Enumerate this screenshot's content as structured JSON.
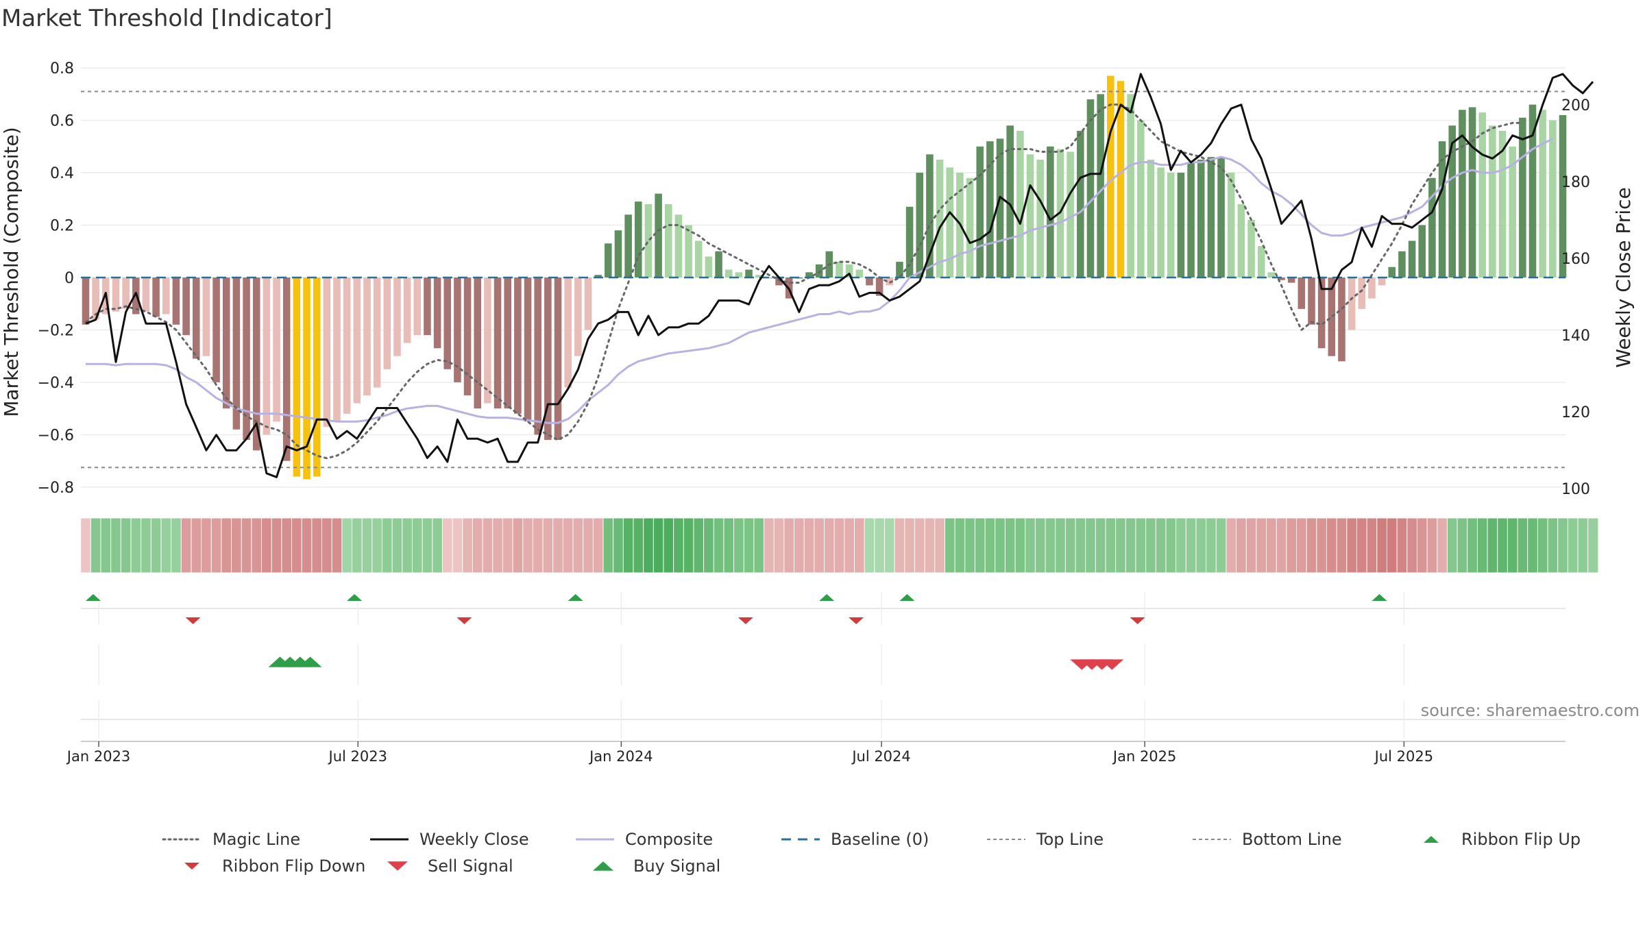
{
  "chart_data": {
    "type": "bar",
    "title": "Market Threshold [Indicator]",
    "ylabel_left": "Market Threshold (Composite)",
    "ylabel_right": "Weekly Close Price",
    "ylim_left": [
      -0.85,
      0.85
    ],
    "ylim_right": [
      97,
      213
    ],
    "yticks_left": [
      0.8,
      0.6,
      0.4,
      0.2,
      0,
      -0.2,
      -0.4,
      -0.6,
      -0.8
    ],
    "yticks_left_labels": [
      "0.8",
      "0.6",
      "0.4",
      "0.2",
      "0",
      "−0.2",
      "−0.4",
      "−0.6",
      "−0.8"
    ],
    "yticks_right": [
      200,
      180,
      160,
      140,
      120,
      100
    ],
    "xticks": [
      {
        "label": "Jan 2023",
        "week": 1.3
      },
      {
        "label": "Jul 2023",
        "week": 27.1
      },
      {
        "label": "Jan 2024",
        "week": 53.3
      },
      {
        "label": "Jul 2024",
        "week": 79.2
      },
      {
        "label": "Jan 2025",
        "week": 105.4
      },
      {
        "label": "Jul 2025",
        "week": 131.2
      }
    ],
    "top_line": 0.71,
    "bottom_line": -0.725,
    "source": "source: sharemaestro.com",
    "series_meta": {
      "composite_color": "#b8b2e2",
      "magic_color": "#666666",
      "close_color": "#111111",
      "baseline_color": "#2a6f97",
      "extreme_color": "#f7c10f"
    },
    "histogram": [
      -0.18,
      -0.16,
      -0.14,
      -0.13,
      -0.12,
      -0.14,
      -0.13,
      -0.15,
      -0.14,
      -0.18,
      -0.22,
      -0.31,
      -0.3,
      -0.4,
      -0.5,
      -0.58,
      -0.62,
      -0.66,
      -0.6,
      -0.55,
      -0.7,
      -0.76,
      -0.77,
      -0.76,
      -0.57,
      -0.55,
      -0.52,
      -0.48,
      -0.45,
      -0.42,
      -0.35,
      -0.3,
      -0.25,
      -0.22,
      -0.22,
      -0.27,
      -0.35,
      -0.4,
      -0.45,
      -0.5,
      -0.48,
      -0.5,
      -0.5,
      -0.52,
      -0.55,
      -0.6,
      -0.62,
      -0.62,
      -0.42,
      -0.3,
      -0.2,
      0.01,
      0.13,
      0.18,
      0.24,
      0.29,
      0.28,
      0.32,
      0.28,
      0.24,
      0.2,
      0.14,
      0.08,
      0.1,
      0.03,
      0.02,
      0.03,
      0.01,
      0.0,
      -0.03,
      -0.08,
      0.0,
      0.02,
      0.05,
      0.1,
      0.06,
      0.05,
      0.03,
      -0.03,
      -0.07,
      -0.03,
      0.06,
      0.27,
      0.4,
      0.47,
      0.45,
      0.42,
      0.4,
      0.38,
      0.5,
      0.52,
      0.53,
      0.58,
      0.56,
      0.47,
      0.45,
      0.5,
      0.49,
      0.48,
      0.56,
      0.68,
      0.7,
      0.77,
      0.75,
      0.7,
      0.6,
      0.45,
      0.42,
      0.4,
      0.4,
      0.44,
      0.45,
      0.46,
      0.46,
      0.4,
      0.28,
      0.22,
      0.12,
      0.02,
      -0.01,
      -0.02,
      -0.12,
      -0.18,
      -0.27,
      -0.3,
      -0.32,
      -0.2,
      -0.12,
      -0.08,
      -0.03,
      0.04,
      0.1,
      0.14,
      0.2,
      0.38,
      0.52,
      0.58,
      0.64,
      0.65,
      0.63,
      0.58,
      0.56,
      0.5,
      0.61,
      0.66,
      0.64,
      0.6,
      0.62
    ],
    "composite": [
      -0.33,
      -0.33,
      -0.33,
      -0.335,
      -0.33,
      -0.33,
      -0.33,
      -0.33,
      -0.335,
      -0.35,
      -0.38,
      -0.4,
      -0.43,
      -0.46,
      -0.48,
      -0.5,
      -0.51,
      -0.52,
      -0.52,
      -0.52,
      -0.525,
      -0.53,
      -0.535,
      -0.54,
      -0.545,
      -0.55,
      -0.55,
      -0.55,
      -0.545,
      -0.535,
      -0.525,
      -0.51,
      -0.5,
      -0.495,
      -0.49,
      -0.49,
      -0.5,
      -0.51,
      -0.52,
      -0.53,
      -0.535,
      -0.535,
      -0.535,
      -0.54,
      -0.545,
      -0.55,
      -0.555,
      -0.555,
      -0.54,
      -0.51,
      -0.47,
      -0.44,
      -0.41,
      -0.37,
      -0.34,
      -0.32,
      -0.31,
      -0.3,
      -0.29,
      -0.285,
      -0.28,
      -0.275,
      -0.27,
      -0.26,
      -0.25,
      -0.23,
      -0.21,
      -0.2,
      -0.19,
      -0.18,
      -0.17,
      -0.16,
      -0.15,
      -0.14,
      -0.14,
      -0.13,
      -0.14,
      -0.13,
      -0.13,
      -0.12,
      -0.09,
      -0.05,
      0.0,
      0.02,
      0.04,
      0.06,
      0.07,
      0.09,
      0.1,
      0.12,
      0.13,
      0.14,
      0.15,
      0.16,
      0.18,
      0.19,
      0.2,
      0.21,
      0.23,
      0.25,
      0.29,
      0.33,
      0.37,
      0.4,
      0.43,
      0.44,
      0.44,
      0.43,
      0.43,
      0.43,
      0.44,
      0.44,
      0.45,
      0.46,
      0.45,
      0.43,
      0.4,
      0.36,
      0.33,
      0.31,
      0.28,
      0.24,
      0.2,
      0.17,
      0.16,
      0.16,
      0.17,
      0.19,
      0.2,
      0.21,
      0.22,
      0.23,
      0.25,
      0.27,
      0.31,
      0.35,
      0.38,
      0.4,
      0.41,
      0.4,
      0.4,
      0.41,
      0.43,
      0.46,
      0.49,
      0.51,
      0.53
    ],
    "magic": [
      -0.17,
      -0.14,
      -0.12,
      -0.12,
      -0.11,
      -0.12,
      -0.13,
      -0.15,
      -0.17,
      -0.2,
      -0.25,
      -0.3,
      -0.35,
      -0.41,
      -0.46,
      -0.5,
      -0.53,
      -0.55,
      -0.57,
      -0.58,
      -0.6,
      -0.64,
      -0.66,
      -0.68,
      -0.69,
      -0.68,
      -0.66,
      -0.63,
      -0.59,
      -0.55,
      -0.5,
      -0.45,
      -0.4,
      -0.36,
      -0.33,
      -0.315,
      -0.32,
      -0.34,
      -0.37,
      -0.4,
      -0.43,
      -0.46,
      -0.49,
      -0.52,
      -0.55,
      -0.58,
      -0.6,
      -0.62,
      -0.6,
      -0.55,
      -0.48,
      -0.38,
      -0.25,
      -0.12,
      -0.02,
      0.08,
      0.14,
      0.18,
      0.2,
      0.2,
      0.18,
      0.16,
      0.13,
      0.11,
      0.09,
      0.07,
      0.05,
      0.03,
      0.01,
      -0.01,
      -0.02,
      -0.02,
      0.0,
      0.02,
      0.05,
      0.06,
      0.06,
      0.05,
      0.03,
      0.0,
      -0.02,
      0.0,
      0.05,
      0.12,
      0.2,
      0.26,
      0.3,
      0.33,
      0.36,
      0.39,
      0.43,
      0.47,
      0.49,
      0.49,
      0.49,
      0.48,
      0.48,
      0.48,
      0.5,
      0.55,
      0.6,
      0.64,
      0.66,
      0.66,
      0.64,
      0.6,
      0.56,
      0.52,
      0.5,
      0.48,
      0.47,
      0.46,
      0.44,
      0.42,
      0.37,
      0.3,
      0.22,
      0.14,
      0.05,
      -0.03,
      -0.12,
      -0.2,
      -0.17,
      -0.18,
      -0.15,
      -0.12,
      -0.08,
      -0.05,
      0.01,
      0.07,
      0.13,
      0.2,
      0.28,
      0.34,
      0.4,
      0.45,
      0.48,
      0.5,
      0.52,
      0.55,
      0.57,
      0.58,
      0.59,
      0.59
    ],
    "close": [
      143,
      144,
      151,
      133,
      146,
      151,
      143,
      143,
      143,
      133,
      122,
      116,
      110,
      114,
      110,
      110,
      113,
      117,
      104,
      103,
      111,
      110,
      111,
      118,
      118,
      113,
      115,
      113,
      117,
      121,
      121,
      121,
      117,
      113,
      108,
      111,
      107,
      118,
      113,
      113,
      112,
      113,
      107,
      107,
      112,
      112,
      122,
      122,
      126,
      131,
      139,
      143,
      144,
      146,
      146,
      140,
      145,
      140,
      142,
      142,
      143,
      143,
      145,
      149,
      149,
      149,
      148,
      154,
      158,
      155,
      152,
      146,
      152,
      153,
      153,
      154,
      156,
      150,
      151,
      151,
      149,
      150,
      152,
      154,
      161,
      168,
      172,
      169,
      164,
      165,
      167,
      176,
      174,
      169,
      179,
      175,
      170,
      172,
      177,
      181,
      182,
      182,
      193,
      200,
      198,
      208,
      202,
      195,
      183,
      188,
      185,
      187,
      190,
      195,
      199,
      200,
      191,
      186,
      178,
      169,
      172,
      175,
      165,
      152,
      152,
      157,
      159,
      168,
      163,
      171,
      169,
      169,
      168,
      170,
      172,
      178,
      190,
      192,
      189,
      187,
      186,
      188,
      192,
      191,
      192,
      200,
      207,
      208,
      205,
      203,
      206
    ],
    "ribbon": [
      -0.15,
      0.45,
      0.45,
      0.45,
      0.45,
      0.4,
      0.4,
      0.4,
      0.35,
      0.35,
      -0.4,
      -0.4,
      -0.4,
      -0.4,
      -0.45,
      -0.45,
      -0.45,
      -0.45,
      -0.5,
      -0.5,
      -0.5,
      -0.5,
      -0.5,
      -0.5,
      -0.5,
      -0.5,
      0.3,
      0.35,
      0.35,
      0.35,
      0.4,
      0.4,
      0.4,
      0.4,
      0.4,
      0.4,
      -0.15,
      -0.15,
      -0.25,
      -0.3,
      -0.3,
      -0.3,
      -0.3,
      -0.35,
      -0.3,
      -0.3,
      -0.3,
      -0.3,
      -0.3,
      -0.3,
      -0.3,
      -0.3,
      0.55,
      0.6,
      0.7,
      0.7,
      0.75,
      0.75,
      0.75,
      0.7,
      0.7,
      0.65,
      0.6,
      0.55,
      0.55,
      0.5,
      0.5,
      0.5,
      -0.25,
      -0.25,
      -0.3,
      -0.3,
      -0.3,
      -0.3,
      -0.3,
      -0.3,
      -0.3,
      -0.3,
      0.25,
      0.25,
      0.25,
      -0.25,
      -0.25,
      -0.25,
      -0.25,
      -0.25,
      0.5,
      0.5,
      0.5,
      0.5,
      0.5,
      0.5,
      0.5,
      0.5,
      0.45,
      0.45,
      0.45,
      0.45,
      0.45,
      0.45,
      0.45,
      0.45,
      0.45,
      0.45,
      0.45,
      0.45,
      0.45,
      0.45,
      0.45,
      0.4,
      0.4,
      0.4,
      0.4,
      0.4,
      -0.3,
      -0.35,
      -0.35,
      -0.35,
      -0.35,
      -0.35,
      -0.4,
      -0.4,
      -0.45,
      -0.45,
      -0.5,
      -0.5,
      -0.55,
      -0.55,
      -0.55,
      -0.6,
      -0.6,
      -0.55,
      -0.5,
      -0.45,
      -0.4,
      -0.3,
      0.45,
      0.5,
      0.55,
      0.6,
      0.65,
      0.65,
      0.65,
      0.6,
      0.6,
      0.55,
      0.5,
      0.45,
      0.4,
      0.4,
      0.35
    ],
    "ribbon_flip_up_weeks": [
      0,
      26,
      48,
      73,
      81,
      128
    ],
    "ribbon_flip_down_weeks": [
      10,
      37,
      65,
      76,
      104
    ],
    "buy_signal_weeks": [
      19,
      20,
      21,
      22
    ],
    "sell_signal_weeks": [
      99,
      100,
      101,
      102
    ]
  },
  "legend": [
    {
      "label": "Magic Line",
      "kind": "dotted",
      "color": "#666666"
    },
    {
      "label": "Weekly Close",
      "kind": "solid",
      "color": "#111111"
    },
    {
      "label": "Composite",
      "kind": "solid",
      "color": "#b8b2e2"
    },
    {
      "label": "Baseline (0)",
      "kind": "dashed",
      "color": "#2a6f97"
    },
    {
      "label": "Top Line",
      "kind": "dashed-thin",
      "color": "#888888"
    },
    {
      "label": "Bottom Line",
      "kind": "dashed-thin",
      "color": "#888888"
    },
    {
      "label": "Ribbon Flip Up",
      "kind": "tri-up",
      "color": "#2e9e48"
    },
    {
      "label": "Ribbon Flip Down",
      "kind": "tri-down",
      "color": "#d13b3b"
    },
    {
      "label": "Sell Signal",
      "kind": "tri-down-big",
      "color": "#e0404b"
    },
    {
      "label": "Buy Signal",
      "kind": "tri-up-big",
      "color": "#2e9e48"
    }
  ]
}
